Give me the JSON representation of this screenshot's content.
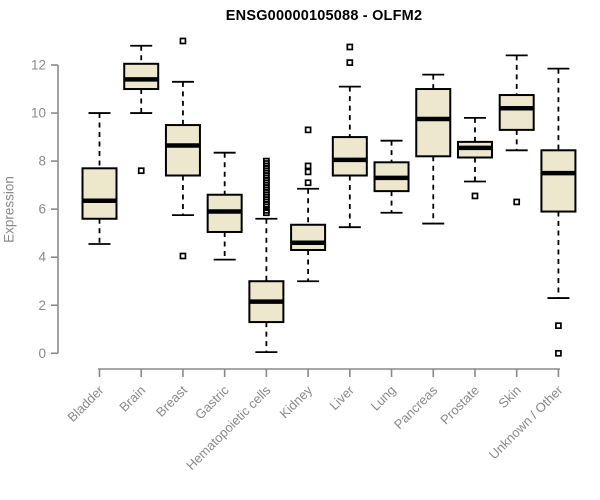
{
  "chart_data": {
    "type": "boxplot",
    "title": "ENSG00000105088 - OLFM2",
    "ylabel": "Expression",
    "xlabel": "",
    "ylim": [
      0,
      12
    ],
    "yticks": [
      0,
      2,
      4,
      6,
      8,
      10,
      12
    ],
    "grid": "off",
    "legend": "none",
    "categories": [
      "Bladder",
      "Brain",
      "Breast",
      "Gastric",
      "Hematopoietic cells",
      "Kidney",
      "Liver",
      "Lung",
      "Pancreas",
      "Prostate",
      "Skin",
      "Unknown / Other"
    ],
    "boxes": [
      {
        "category": "Bladder",
        "whisker_low": 4.55,
        "q1": 5.6,
        "median": 6.35,
        "q3": 7.7,
        "whisker_high": 10.0,
        "outliers": []
      },
      {
        "category": "Brain",
        "whisker_low": 10.0,
        "q1": 11.0,
        "median": 11.4,
        "q3": 12.05,
        "whisker_high": 12.8,
        "outliers": [
          7.6
        ]
      },
      {
        "category": "Breast",
        "whisker_low": 5.75,
        "q1": 7.4,
        "median": 8.65,
        "q3": 9.5,
        "whisker_high": 11.3,
        "outliers": [
          13.0,
          4.05
        ]
      },
      {
        "category": "Gastric",
        "whisker_low": 3.9,
        "q1": 5.05,
        "median": 5.9,
        "q3": 6.6,
        "whisker_high": 8.35,
        "outliers": []
      },
      {
        "category": "Hematopoietic cells",
        "whisker_low": 0.05,
        "q1": 1.3,
        "median": 2.15,
        "q3": 3.0,
        "whisker_high": 5.6,
        "outliers": [
          8.0,
          7.9,
          7.8,
          7.7,
          7.6,
          7.5,
          7.4,
          7.3,
          7.2,
          7.1,
          7.0,
          6.9,
          6.8,
          6.7,
          6.6,
          6.5,
          6.4,
          6.3,
          6.2,
          6.1,
          5.95,
          5.85
        ]
      },
      {
        "category": "Kidney",
        "whisker_low": 3.0,
        "q1": 4.3,
        "median": 4.6,
        "q3": 5.35,
        "whisker_high": 6.85,
        "outliers": [
          9.3,
          7.8,
          7.55,
          7.1
        ]
      },
      {
        "category": "Liver",
        "whisker_low": 5.25,
        "q1": 7.4,
        "median": 8.05,
        "q3": 9.0,
        "whisker_high": 11.1,
        "outliers": [
          12.75,
          12.1
        ]
      },
      {
        "category": "Lung",
        "whisker_low": 5.85,
        "q1": 6.75,
        "median": 7.3,
        "q3": 7.95,
        "whisker_high": 8.85,
        "outliers": []
      },
      {
        "category": "Pancreas",
        "whisker_low": 5.4,
        "q1": 8.2,
        "median": 9.75,
        "q3": 11.0,
        "whisker_high": 11.6,
        "outliers": []
      },
      {
        "category": "Prostate",
        "whisker_low": 7.15,
        "q1": 8.15,
        "median": 8.55,
        "q3": 8.8,
        "whisker_high": 9.8,
        "outliers": [
          6.55
        ]
      },
      {
        "category": "Skin",
        "whisker_low": 8.45,
        "q1": 9.3,
        "median": 10.2,
        "q3": 10.75,
        "whisker_high": 12.4,
        "outliers": [
          6.3
        ]
      },
      {
        "category": "Unknown / Other",
        "whisker_low": 2.3,
        "q1": 5.9,
        "median": 7.5,
        "q3": 8.45,
        "whisker_high": 11.85,
        "outliers": [
          1.15,
          0.0
        ]
      }
    ],
    "colors": {
      "box_fill": "#EDE7CE",
      "box_line": "#000000",
      "axis": "#8a8a8a",
      "title": "#000000",
      "background": "#FFFFFF"
    }
  }
}
